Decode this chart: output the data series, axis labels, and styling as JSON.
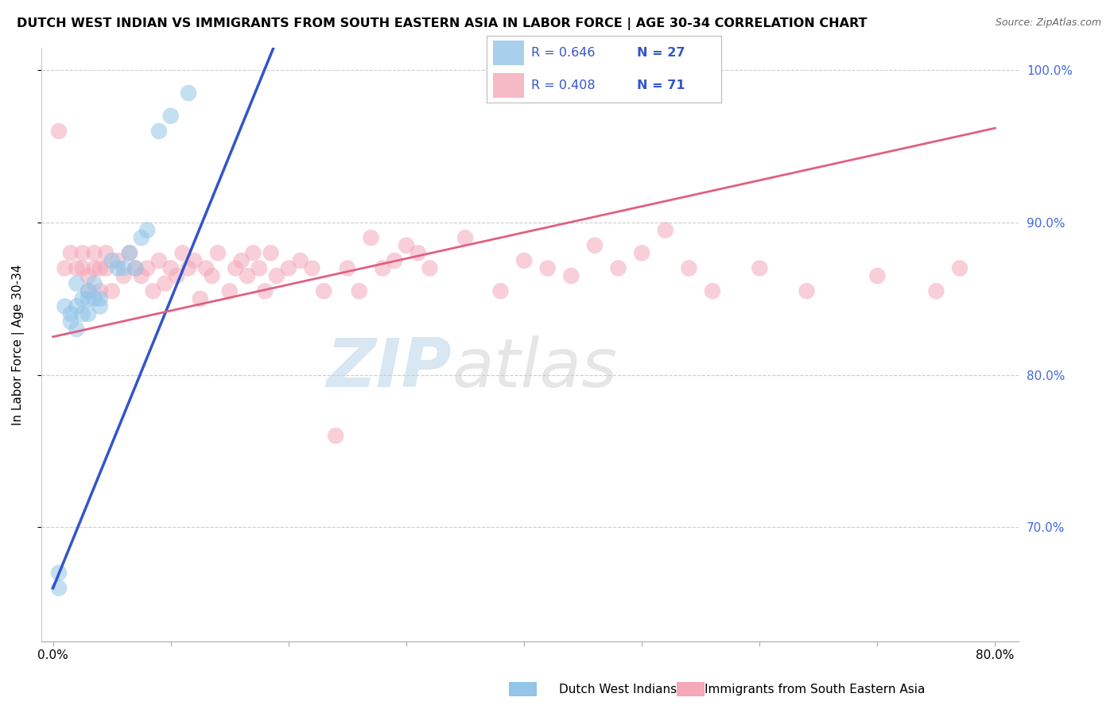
{
  "title": "DUTCH WEST INDIAN VS IMMIGRANTS FROM SOUTH EASTERN ASIA IN LABOR FORCE | AGE 30-34 CORRELATION CHART",
  "source": "Source: ZipAtlas.com",
  "xlabel_blue": "Dutch West Indians",
  "xlabel_pink": "Immigrants from South Eastern Asia",
  "ylabel": "In Labor Force | Age 30-34",
  "xlim": [
    -0.01,
    0.82
  ],
  "ylim": [
    0.625,
    1.015
  ],
  "xticks": [
    0.0,
    0.1,
    0.2,
    0.3,
    0.4,
    0.5,
    0.6,
    0.7,
    0.8
  ],
  "xtick_labels_show": [
    "0.0%",
    "",
    "",
    "",
    "",
    "",
    "",
    "",
    "80.0%"
  ],
  "yticks": [
    0.7,
    0.8,
    0.9,
    1.0
  ],
  "ytick_labels": [
    "70.0%",
    "80.0%",
    "90.0%",
    "100.0%"
  ],
  "R_blue": 0.646,
  "N_blue": 27,
  "R_pink": 0.408,
  "N_pink": 71,
  "blue_color": "#92c5e8",
  "pink_color": "#f4a8b8",
  "trend_blue": "#3355cc",
  "trend_pink": "#e06080",
  "blue_scatter_x": [
    0.005,
    0.005,
    0.01,
    0.015,
    0.015,
    0.02,
    0.02,
    0.02,
    0.025,
    0.025,
    0.03,
    0.03,
    0.03,
    0.035,
    0.035,
    0.04,
    0.04,
    0.05,
    0.055,
    0.06,
    0.065,
    0.07,
    0.075,
    0.08,
    0.09,
    0.1,
    0.115
  ],
  "blue_scatter_y": [
    0.66,
    0.67,
    0.845,
    0.835,
    0.84,
    0.83,
    0.845,
    0.86,
    0.84,
    0.85,
    0.84,
    0.85,
    0.855,
    0.85,
    0.86,
    0.845,
    0.85,
    0.875,
    0.87,
    0.87,
    0.88,
    0.87,
    0.89,
    0.895,
    0.96,
    0.97,
    0.985
  ],
  "pink_scatter_x": [
    0.005,
    0.01,
    0.015,
    0.02,
    0.025,
    0.025,
    0.03,
    0.03,
    0.035,
    0.035,
    0.04,
    0.04,
    0.045,
    0.045,
    0.05,
    0.055,
    0.06,
    0.065,
    0.07,
    0.075,
    0.08,
    0.085,
    0.09,
    0.095,
    0.1,
    0.105,
    0.11,
    0.115,
    0.12,
    0.125,
    0.13,
    0.135,
    0.14,
    0.15,
    0.155,
    0.16,
    0.165,
    0.17,
    0.175,
    0.18,
    0.185,
    0.19,
    0.2,
    0.21,
    0.22,
    0.23,
    0.24,
    0.25,
    0.26,
    0.27,
    0.28,
    0.29,
    0.3,
    0.31,
    0.32,
    0.35,
    0.38,
    0.4,
    0.42,
    0.44,
    0.46,
    0.48,
    0.5,
    0.52,
    0.54,
    0.56,
    0.6,
    0.64,
    0.7,
    0.75,
    0.77
  ],
  "pink_scatter_y": [
    0.96,
    0.87,
    0.88,
    0.87,
    0.87,
    0.88,
    0.855,
    0.865,
    0.87,
    0.88,
    0.855,
    0.87,
    0.87,
    0.88,
    0.855,
    0.875,
    0.865,
    0.88,
    0.87,
    0.865,
    0.87,
    0.855,
    0.875,
    0.86,
    0.87,
    0.865,
    0.88,
    0.87,
    0.875,
    0.85,
    0.87,
    0.865,
    0.88,
    0.855,
    0.87,
    0.875,
    0.865,
    0.88,
    0.87,
    0.855,
    0.88,
    0.865,
    0.87,
    0.875,
    0.87,
    0.855,
    0.76,
    0.87,
    0.855,
    0.89,
    0.87,
    0.875,
    0.885,
    0.88,
    0.87,
    0.89,
    0.855,
    0.875,
    0.87,
    0.865,
    0.885,
    0.87,
    0.88,
    0.895,
    0.87,
    0.855,
    0.87,
    0.855,
    0.865,
    0.855,
    0.87
  ],
  "watermark_zip_color": "#b8d4e8",
  "watermark_atlas_color": "#c8c8c8",
  "background": "#ffffff"
}
